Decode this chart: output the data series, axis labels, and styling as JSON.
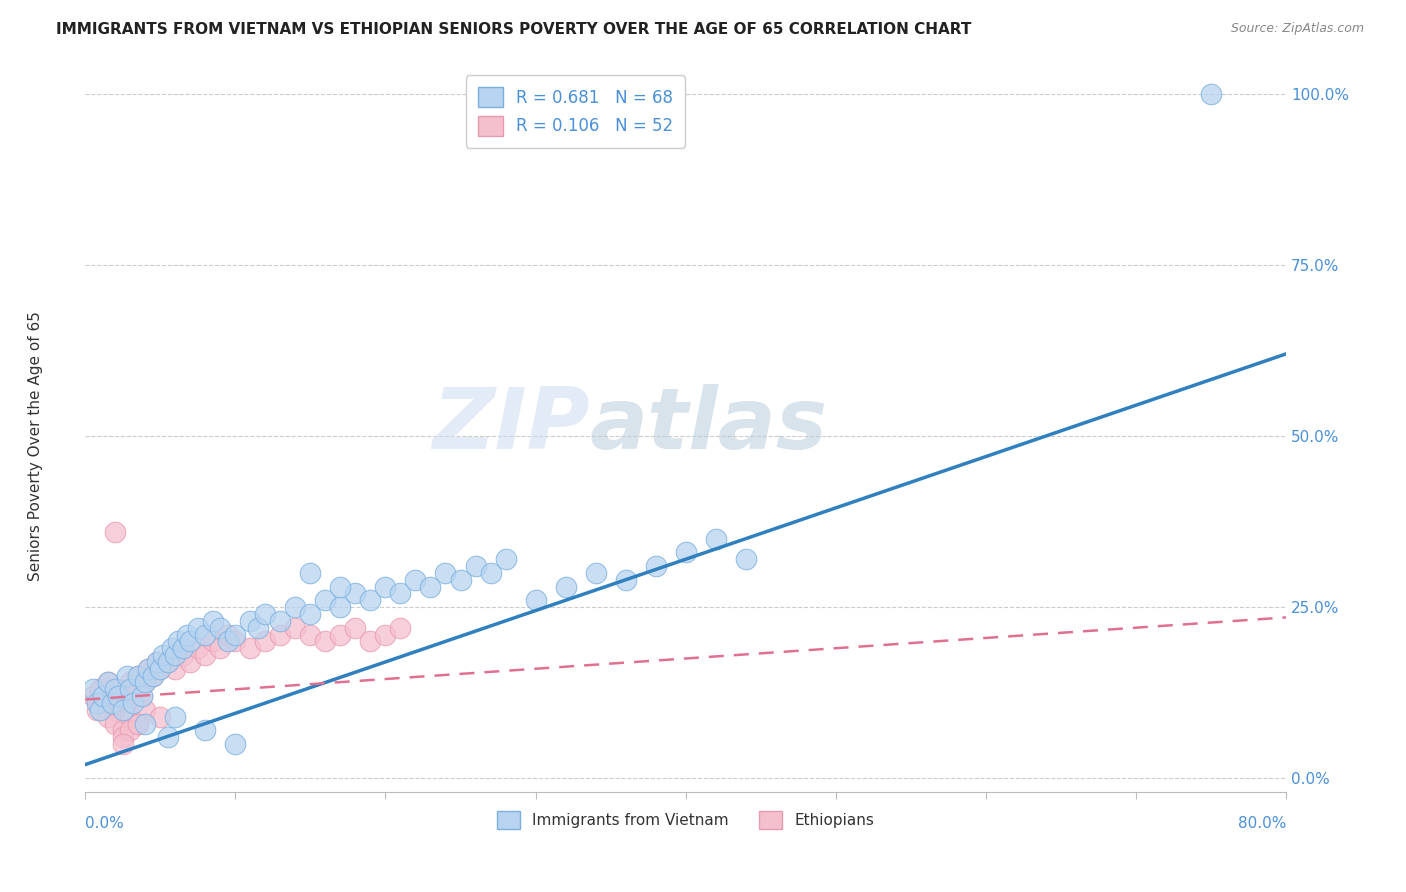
{
  "title": "IMMIGRANTS FROM VIETNAM VS ETHIOPIAN SENIORS POVERTY OVER THE AGE OF 65 CORRELATION CHART",
  "source": "Source: ZipAtlas.com",
  "ylabel": "Seniors Poverty Over the Age of 65",
  "xlim": [
    0.0,
    0.8
  ],
  "ylim": [
    -0.02,
    1.05
  ],
  "yticks": [
    0.0,
    0.25,
    0.5,
    0.75,
    1.0
  ],
  "ytick_labels": [
    "0.0%",
    "25.0%",
    "50.0%",
    "75.0%",
    "100.0%"
  ],
  "xticks": [
    0.0,
    0.1,
    0.2,
    0.3,
    0.4,
    0.5,
    0.6,
    0.7,
    0.8
  ],
  "legend_vietnam_label": "R = 0.681   N = 68",
  "legend_ethiopian_label": "R = 0.106   N = 52",
  "vietnam_color": "#b8d4f0",
  "vietnam_color_edge": "#7ab0e0",
  "ethiopian_color": "#f5c0ce",
  "ethiopian_color_edge": "#e89ab0",
  "vietnam_scatter_x": [
    0.005,
    0.008,
    0.01,
    0.012,
    0.015,
    0.018,
    0.02,
    0.022,
    0.025,
    0.028,
    0.03,
    0.032,
    0.035,
    0.038,
    0.04,
    0.042,
    0.045,
    0.048,
    0.05,
    0.052,
    0.055,
    0.058,
    0.06,
    0.062,
    0.065,
    0.068,
    0.07,
    0.075,
    0.08,
    0.085,
    0.09,
    0.095,
    0.1,
    0.11,
    0.115,
    0.12,
    0.13,
    0.14,
    0.15,
    0.16,
    0.17,
    0.18,
    0.19,
    0.2,
    0.21,
    0.22,
    0.23,
    0.24,
    0.25,
    0.26,
    0.27,
    0.28,
    0.3,
    0.32,
    0.34,
    0.36,
    0.38,
    0.4,
    0.42,
    0.44,
    0.15,
    0.17,
    0.04,
    0.055,
    0.08,
    0.1,
    0.06,
    0.75
  ],
  "vietnam_scatter_y": [
    0.13,
    0.11,
    0.1,
    0.12,
    0.14,
    0.11,
    0.13,
    0.12,
    0.1,
    0.15,
    0.13,
    0.11,
    0.15,
    0.12,
    0.14,
    0.16,
    0.15,
    0.17,
    0.16,
    0.18,
    0.17,
    0.19,
    0.18,
    0.2,
    0.19,
    0.21,
    0.2,
    0.22,
    0.21,
    0.23,
    0.22,
    0.2,
    0.21,
    0.23,
    0.22,
    0.24,
    0.23,
    0.25,
    0.24,
    0.26,
    0.25,
    0.27,
    0.26,
    0.28,
    0.27,
    0.29,
    0.28,
    0.3,
    0.29,
    0.31,
    0.3,
    0.32,
    0.26,
    0.28,
    0.3,
    0.29,
    0.31,
    0.33,
    0.35,
    0.32,
    0.3,
    0.28,
    0.08,
    0.06,
    0.07,
    0.05,
    0.09,
    1.0
  ],
  "ethiopian_scatter_x": [
    0.005,
    0.008,
    0.01,
    0.012,
    0.015,
    0.018,
    0.02,
    0.022,
    0.025,
    0.028,
    0.03,
    0.032,
    0.035,
    0.038,
    0.04,
    0.042,
    0.045,
    0.048,
    0.05,
    0.055,
    0.06,
    0.065,
    0.07,
    0.075,
    0.08,
    0.085,
    0.09,
    0.095,
    0.1,
    0.11,
    0.12,
    0.13,
    0.14,
    0.15,
    0.16,
    0.17,
    0.18,
    0.19,
    0.2,
    0.21,
    0.015,
    0.02,
    0.025,
    0.03,
    0.035,
    0.04,
    0.05,
    0.025,
    0.03,
    0.035,
    0.02,
    0.025
  ],
  "ethiopian_scatter_y": [
    0.12,
    0.1,
    0.13,
    0.11,
    0.14,
    0.12,
    0.1,
    0.13,
    0.12,
    0.11,
    0.14,
    0.13,
    0.15,
    0.12,
    0.14,
    0.16,
    0.15,
    0.17,
    0.16,
    0.17,
    0.16,
    0.18,
    0.17,
    0.19,
    0.18,
    0.2,
    0.19,
    0.21,
    0.2,
    0.19,
    0.2,
    0.21,
    0.22,
    0.21,
    0.2,
    0.21,
    0.22,
    0.2,
    0.21,
    0.22,
    0.09,
    0.08,
    0.07,
    0.09,
    0.08,
    0.1,
    0.09,
    0.06,
    0.07,
    0.08,
    0.36,
    0.05
  ],
  "vietnam_trendline_x": [
    0.0,
    0.8
  ],
  "vietnam_trendline_y": [
    0.02,
    0.62
  ],
  "ethiopian_trendline_x": [
    0.0,
    0.8
  ],
  "ethiopian_trendline_y": [
    0.115,
    0.235
  ],
  "watermark_zip": "ZIP",
  "watermark_atlas": "atlas",
  "background_color": "#ffffff"
}
